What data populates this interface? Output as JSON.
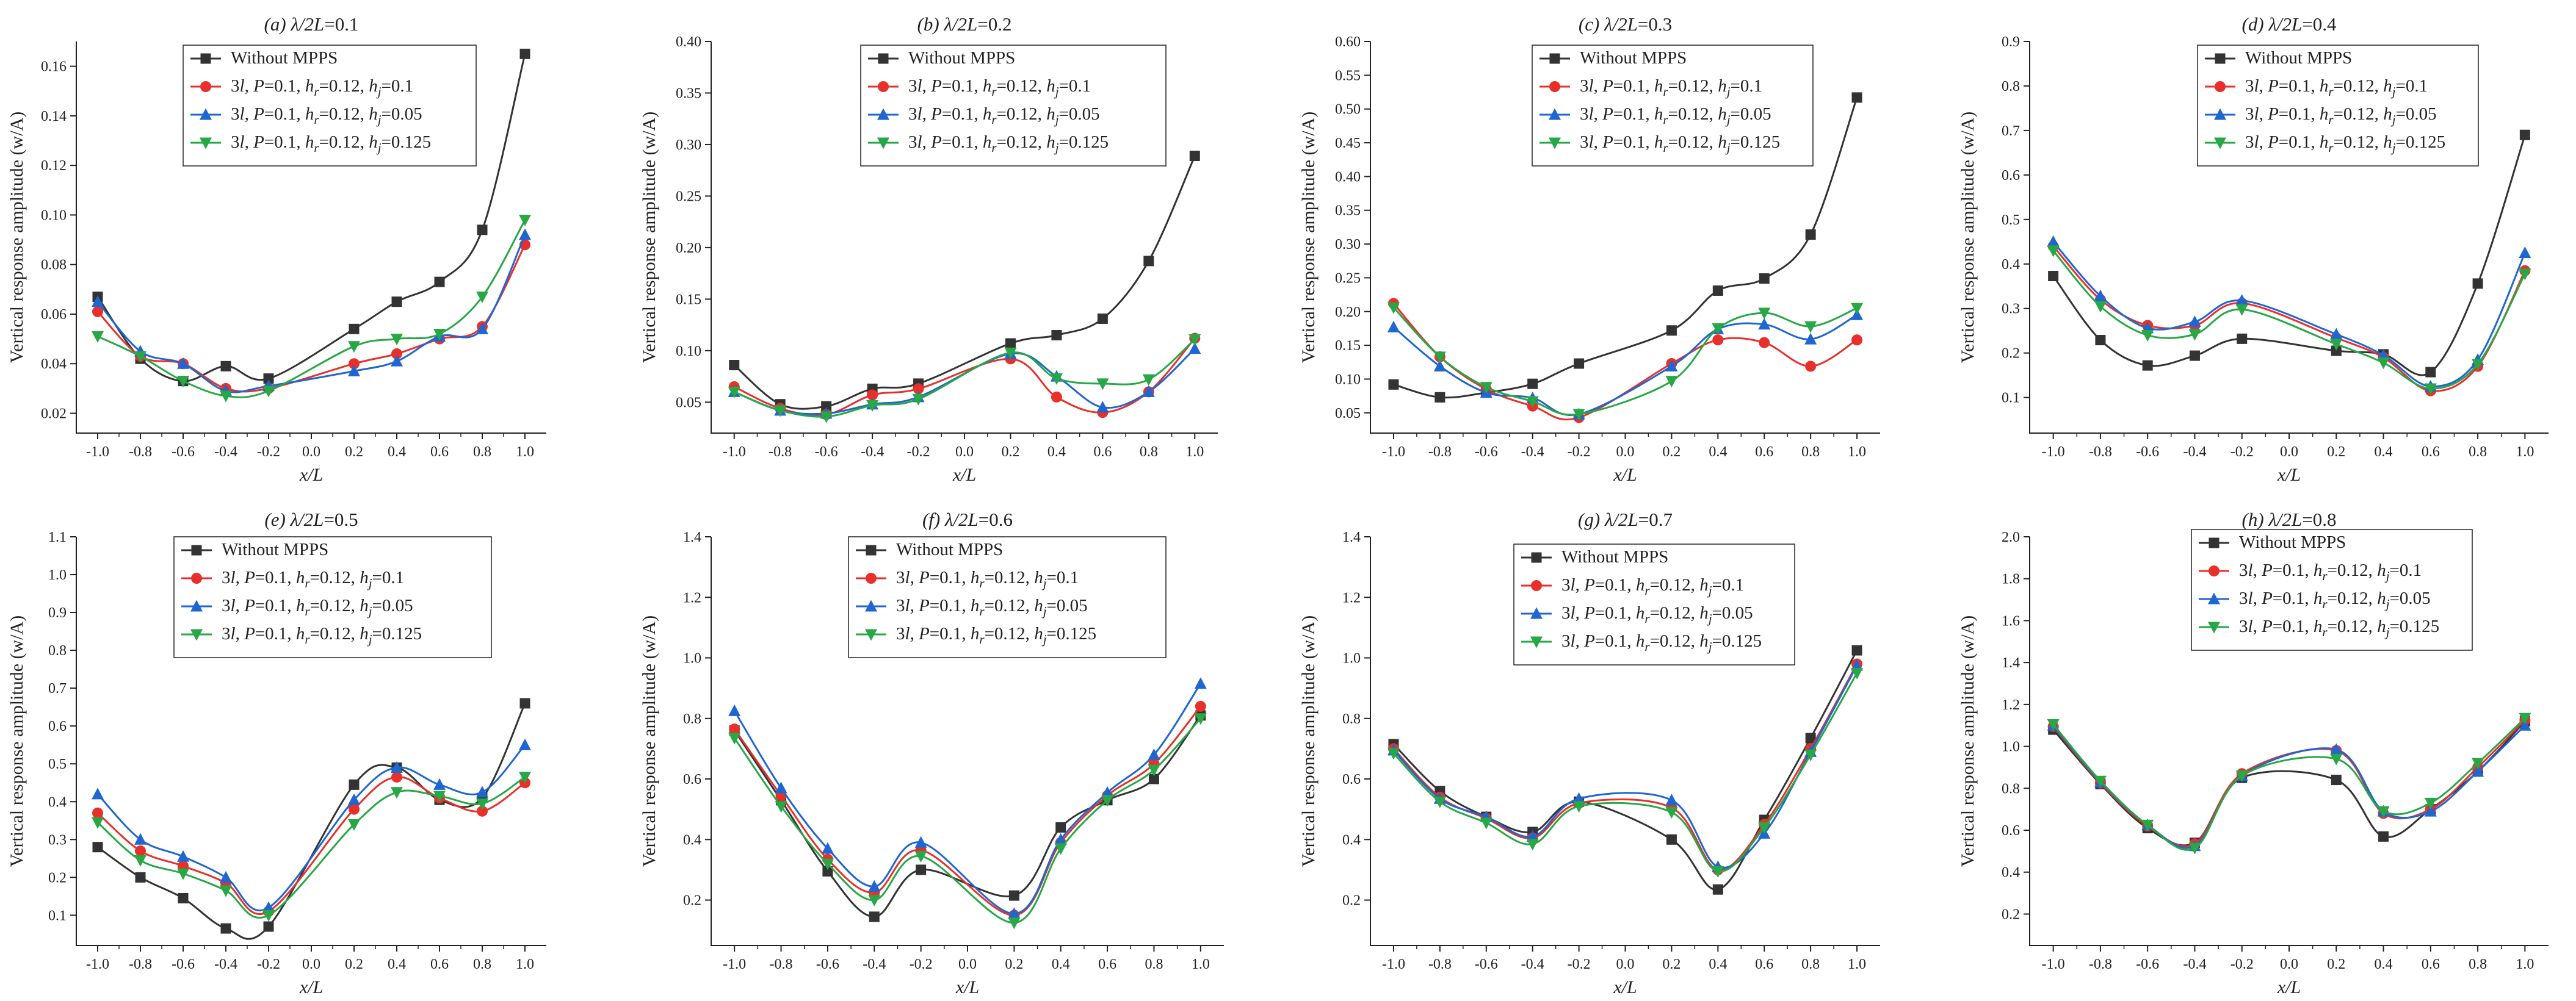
{
  "chart_data": [
    {
      "type": "line",
      "title": "(a) λ/2L=0.1",
      "xlabel": "x/L",
      "ylabel": "Vertical response amplitude (w/A)",
      "x": [
        -1.0,
        -0.8,
        -0.6,
        -0.4,
        -0.2,
        0.2,
        0.4,
        0.6,
        0.8,
        1.0
      ],
      "xticks": [
        "-1.0",
        "-0.8",
        "-0.6",
        "-0.4",
        "-0.2",
        "0.0",
        "0.2",
        "0.4",
        "0.6",
        "0.8",
        "1.0"
      ],
      "ylim": [
        0.012,
        0.17
      ],
      "yticks": [
        "0.02",
        "0.04",
        "0.06",
        "0.08",
        "0.10",
        "0.12",
        "0.14",
        "0.16"
      ],
      "ytick_values": [
        0.02,
        0.04,
        0.06,
        0.08,
        0.1,
        0.12,
        0.14,
        0.16
      ],
      "legend_position": "top-center",
      "series": [
        {
          "name": "Without MPPS",
          "color": "#333333",
          "marker": "square",
          "values": [
            0.067,
            0.042,
            0.033,
            0.039,
            0.034,
            0.054,
            0.065,
            0.073,
            0.094,
            0.165
          ]
        },
        {
          "name": "3l, P=0.1, hr=0.12, hj=0.1",
          "color": "#e8302a",
          "marker": "circle",
          "values": [
            0.061,
            0.043,
            0.04,
            0.03,
            0.03,
            0.04,
            0.044,
            0.05,
            0.055,
            0.088
          ]
        },
        {
          "name": "3l, P=0.1, hr=0.12, hj=0.05",
          "color": "#1f66d1",
          "marker": "triangle-up",
          "values": [
            0.065,
            0.045,
            0.04,
            0.029,
            0.031,
            0.037,
            0.041,
            0.051,
            0.054,
            0.092
          ]
        },
        {
          "name": "3l, P=0.1, hr=0.12, hj=0.125",
          "color": "#27a745",
          "marker": "triangle-down",
          "values": [
            0.051,
            0.043,
            0.033,
            0.027,
            0.029,
            0.047,
            0.05,
            0.052,
            0.067,
            0.098
          ]
        }
      ]
    },
    {
      "type": "line",
      "title": "(b) λ/2L=0.2",
      "xlabel": "x/L",
      "ylabel": "Vertical response amplitude (w/A)",
      "x": [
        -1.0,
        -0.8,
        -0.6,
        -0.4,
        -0.2,
        0.2,
        0.4,
        0.6,
        0.8,
        1.0
      ],
      "xticks": [
        "-1.0",
        "-0.8",
        "-0.6",
        "-0.4",
        "-0.2",
        "0.0",
        "0.2",
        "0.4",
        "0.6",
        "0.8",
        "1.0"
      ],
      "ylim": [
        0.02,
        0.4
      ],
      "yticks": [
        "0.05",
        "0.10",
        "0.15",
        "0.20",
        "0.25",
        "0.30",
        "0.35",
        "0.40"
      ],
      "ytick_values": [
        0.05,
        0.1,
        0.15,
        0.2,
        0.25,
        0.3,
        0.35,
        0.4
      ],
      "legend_position": "top-center",
      "series": [
        {
          "name": "Without MPPS",
          "color": "#333333",
          "marker": "square",
          "values": [
            0.086,
            0.048,
            0.046,
            0.063,
            0.068,
            0.107,
            0.115,
            0.131,
            0.187,
            0.289
          ]
        },
        {
          "name": "3l, P=0.1, hr=0.12, hj=0.1",
          "color": "#e8302a",
          "marker": "circle",
          "values": [
            0.065,
            0.044,
            0.038,
            0.057,
            0.063,
            0.092,
            0.055,
            0.04,
            0.06,
            0.112
          ]
        },
        {
          "name": "3l, P=0.1, hr=0.12, hj=0.05",
          "color": "#1f66d1",
          "marker": "triangle-up",
          "values": [
            0.06,
            0.042,
            0.039,
            0.048,
            0.055,
            0.097,
            0.075,
            0.045,
            0.06,
            0.102
          ]
        },
        {
          "name": "3l, P=0.1, hr=0.12, hj=0.125",
          "color": "#27a745",
          "marker": "triangle-down",
          "values": [
            0.06,
            0.042,
            0.036,
            0.047,
            0.053,
            0.098,
            0.073,
            0.068,
            0.072,
            0.111
          ]
        }
      ]
    },
    {
      "type": "line",
      "title": "(c) λ/2L=0.3",
      "xlabel": "x/L",
      "ylabel": "Vertical response amplitude (w/A)",
      "x": [
        -1.0,
        -0.8,
        -0.6,
        -0.4,
        -0.2,
        0.2,
        0.4,
        0.6,
        0.8,
        1.0
      ],
      "xticks": [
        "-1.0",
        "-0.8",
        "-0.6",
        "-0.4",
        "-0.2",
        "0.0",
        "0.2",
        "0.4",
        "0.6",
        "0.8",
        "1.0"
      ],
      "ylim": [
        0.02,
        0.6
      ],
      "yticks": [
        "0.05",
        "0.10",
        "0.15",
        "0.20",
        "0.25",
        "0.30",
        "0.35",
        "0.40",
        "0.45",
        "0.50",
        "0.55",
        "0.60"
      ],
      "ytick_values": [
        0.05,
        0.1,
        0.15,
        0.2,
        0.25,
        0.3,
        0.35,
        0.4,
        0.45,
        0.5,
        0.55,
        0.6
      ],
      "legend_position": "top-center",
      "series": [
        {
          "name": "Without MPPS",
          "color": "#333333",
          "marker": "square",
          "values": [
            0.092,
            0.073,
            0.08,
            0.093,
            0.123,
            0.172,
            0.231,
            0.249,
            0.314,
            0.517
          ]
        },
        {
          "name": "3l, P=0.1, hr=0.12, hj=0.1",
          "color": "#e8302a",
          "marker": "circle",
          "values": [
            0.212,
            0.133,
            0.085,
            0.06,
            0.043,
            0.123,
            0.158,
            0.154,
            0.119,
            0.158
          ]
        },
        {
          "name": "3l, P=0.1, hr=0.12, hj=0.05",
          "color": "#1f66d1",
          "marker": "triangle-up",
          "values": [
            0.177,
            0.119,
            0.08,
            0.072,
            0.048,
            0.119,
            0.174,
            0.181,
            0.159,
            0.195
          ]
        },
        {
          "name": "3l, P=0.1, hr=0.12, hj=0.125",
          "color": "#27a745",
          "marker": "triangle-down",
          "values": [
            0.206,
            0.133,
            0.088,
            0.067,
            0.048,
            0.097,
            0.175,
            0.198,
            0.178,
            0.205
          ]
        }
      ]
    },
    {
      "type": "line",
      "title": "(d) λ/2L=0.4",
      "xlabel": "x/L",
      "ylabel": "Vertical response amplitude (w/A)",
      "x": [
        -1.0,
        -0.8,
        -0.6,
        -0.4,
        -0.2,
        0.2,
        0.4,
        0.6,
        0.8,
        1.0
      ],
      "xticks": [
        "-1.0",
        "-0.8",
        "-0.6",
        "-0.4",
        "-0.2",
        "0.0",
        "0.2",
        "0.4",
        "0.6",
        "0.8",
        "1.0"
      ],
      "ylim": [
        0.02,
        0.9
      ],
      "yticks": [
        "0.1",
        "0.2",
        "0.3",
        "0.4",
        "0.5",
        "0.6",
        "0.7",
        "0.8",
        "0.9"
      ],
      "ytick_values": [
        0.1,
        0.2,
        0.3,
        0.4,
        0.5,
        0.6,
        0.7,
        0.8,
        0.9
      ],
      "legend_position": "top-center",
      "series": [
        {
          "name": "Without MPPS",
          "color": "#333333",
          "marker": "square",
          "values": [
            0.373,
            0.229,
            0.172,
            0.194,
            0.232,
            0.205,
            0.197,
            0.157,
            0.356,
            0.69
          ]
        },
        {
          "name": "3l, P=0.1, hr=0.12, hj=0.1",
          "color": "#e8302a",
          "marker": "circle",
          "values": [
            0.44,
            0.32,
            0.262,
            0.262,
            0.312,
            0.234,
            0.19,
            0.115,
            0.17,
            0.385
          ]
        },
        {
          "name": "3l, P=0.1, hr=0.12, hj=0.05",
          "color": "#1f66d1",
          "marker": "triangle-up",
          "values": [
            0.45,
            0.328,
            0.256,
            0.27,
            0.318,
            0.242,
            0.195,
            0.125,
            0.185,
            0.425
          ]
        },
        {
          "name": "3l, P=0.1, hr=0.12, hj=0.125",
          "color": "#27a745",
          "marker": "triangle-down",
          "values": [
            0.43,
            0.305,
            0.24,
            0.242,
            0.298,
            0.22,
            0.178,
            0.12,
            0.175,
            0.378
          ]
        }
      ]
    },
    {
      "type": "line",
      "title": "(e) λ/2L=0.5",
      "xlabel": "x/L",
      "ylabel": "Vertical response amplitude (w/A)",
      "x": [
        -1.0,
        -0.8,
        -0.6,
        -0.4,
        -0.2,
        0.2,
        0.4,
        0.6,
        0.8,
        1.0
      ],
      "xticks": [
        "-1.0",
        "-0.8",
        "-0.6",
        "-0.4",
        "-0.2",
        "0.0",
        "0.2",
        "0.4",
        "0.6",
        "0.8",
        "1.0"
      ],
      "ylim": [
        0.02,
        1.1
      ],
      "yticks": [
        "0.1",
        "0.2",
        "0.3",
        "0.4",
        "0.5",
        "0.6",
        "0.7",
        "0.8",
        "0.9",
        "1.0",
        "1.1"
      ],
      "ytick_values": [
        0.1,
        0.2,
        0.3,
        0.4,
        0.5,
        0.6,
        0.7,
        0.8,
        0.9,
        1.0,
        1.1
      ],
      "legend_position": "top-center",
      "series": [
        {
          "name": "Without MPPS",
          "color": "#333333",
          "marker": "square",
          "values": [
            0.28,
            0.2,
            0.145,
            0.065,
            0.07,
            0.445,
            0.49,
            0.405,
            0.41,
            0.66
          ]
        },
        {
          "name": "3l, P=0.1, hr=0.12, hj=0.1",
          "color": "#e8302a",
          "marker": "circle",
          "values": [
            0.37,
            0.27,
            0.23,
            0.185,
            0.11,
            0.38,
            0.465,
            0.41,
            0.375,
            0.45
          ]
        },
        {
          "name": "3l, P=0.1, hr=0.12, hj=0.05",
          "color": "#1f66d1",
          "marker": "triangle-up",
          "values": [
            0.42,
            0.3,
            0.255,
            0.2,
            0.12,
            0.405,
            0.49,
            0.445,
            0.425,
            0.55
          ]
        },
        {
          "name": "3l, P=0.1, hr=0.12, hj=0.125",
          "color": "#27a745",
          "marker": "triangle-down",
          "values": [
            0.345,
            0.245,
            0.21,
            0.165,
            0.1,
            0.34,
            0.425,
            0.415,
            0.395,
            0.465
          ]
        }
      ]
    },
    {
      "type": "line",
      "title": "(f) λ/2L=0.6",
      "xlabel": "x/L",
      "ylabel": "Vertical response amplitude (w/A)",
      "x": [
        -1.0,
        -0.8,
        -0.6,
        -0.4,
        -0.2,
        0.2,
        0.4,
        0.6,
        0.8,
        1.0
      ],
      "xticks": [
        "-1.0",
        "-0.8",
        "-0.6",
        "-0.4",
        "-0.2",
        "0.0",
        "0.2",
        "0.4",
        "0.6",
        "0.8",
        "1.0"
      ],
      "ylim": [
        0.05,
        1.4
      ],
      "yticks": [
        "0.2",
        "0.4",
        "0.6",
        "0.8",
        "1.0",
        "1.2",
        "1.4"
      ],
      "ytick_values": [
        0.2,
        0.4,
        0.6,
        0.8,
        1.0,
        1.2,
        1.4
      ],
      "legend_position": "top-center",
      "series": [
        {
          "name": "Without MPPS",
          "color": "#333333",
          "marker": "square",
          "values": [
            0.76,
            0.53,
            0.295,
            0.145,
            0.3,
            0.215,
            0.44,
            0.53,
            0.6,
            0.81
          ]
        },
        {
          "name": "3l, P=0.1, hr=0.12, hj=0.1",
          "color": "#e8302a",
          "marker": "circle",
          "values": [
            0.765,
            0.545,
            0.335,
            0.225,
            0.365,
            0.15,
            0.39,
            0.545,
            0.65,
            0.84
          ]
        },
        {
          "name": "3l, P=0.1, hr=0.12, hj=0.05",
          "color": "#1f66d1",
          "marker": "triangle-up",
          "values": [
            0.825,
            0.57,
            0.37,
            0.245,
            0.39,
            0.155,
            0.4,
            0.555,
            0.68,
            0.915
          ]
        },
        {
          "name": "3l, P=0.1, hr=0.12, hj=0.125",
          "color": "#27a745",
          "marker": "triangle-down",
          "values": [
            0.735,
            0.51,
            0.32,
            0.2,
            0.345,
            0.125,
            0.37,
            0.53,
            0.63,
            0.8
          ]
        }
      ]
    },
    {
      "type": "line",
      "title": "(g) λ/2L=0.7",
      "xlabel": "x/L",
      "ylabel": "Vertical response amplitude (w/A)",
      "x": [
        -1.0,
        -0.8,
        -0.6,
        -0.4,
        -0.2,
        0.2,
        0.4,
        0.6,
        0.8,
        1.0
      ],
      "xticks": [
        "-1.0",
        "-0.8",
        "-0.6",
        "-0.4",
        "-0.2",
        "0.0",
        "0.2",
        "0.4",
        "0.6",
        "0.8",
        "1.0"
      ],
      "ylim": [
        0.05,
        1.4
      ],
      "yticks": [
        "0.2",
        "0.4",
        "0.6",
        "0.8",
        "1.0",
        "1.2",
        "1.4"
      ],
      "ytick_values": [
        0.2,
        0.4,
        0.6,
        0.8,
        1.0,
        1.2,
        1.4
      ],
      "legend_position": "top-center",
      "series": [
        {
          "name": "Without MPPS",
          "color": "#333333",
          "marker": "square",
          "values": [
            0.715,
            0.56,
            0.475,
            0.425,
            0.525,
            0.4,
            0.235,
            0.465,
            0.735,
            1.025
          ]
        },
        {
          "name": "3l, P=0.1, hr=0.12, hj=0.1",
          "color": "#e8302a",
          "marker": "circle",
          "values": [
            0.7,
            0.54,
            0.47,
            0.405,
            0.52,
            0.505,
            0.3,
            0.45,
            0.7,
            0.98
          ]
        },
        {
          "name": "3l, P=0.1, hr=0.12, hj=0.05",
          "color": "#1f66d1",
          "marker": "triangle-up",
          "values": [
            0.695,
            0.535,
            0.475,
            0.41,
            0.535,
            0.53,
            0.31,
            0.42,
            0.69,
            0.975
          ]
        },
        {
          "name": "3l, P=0.1, hr=0.12, hj=0.125",
          "color": "#27a745",
          "marker": "triangle-down",
          "values": [
            0.685,
            0.525,
            0.455,
            0.385,
            0.51,
            0.49,
            0.295,
            0.44,
            0.68,
            0.95
          ]
        }
      ]
    },
    {
      "type": "line",
      "title": "(h) λ/2L=0.8",
      "xlabel": "x/L",
      "ylabel": "Vertical response amplitude (w/A)",
      "x": [
        -1.0,
        -0.8,
        -0.6,
        -0.4,
        -0.2,
        0.2,
        0.4,
        0.6,
        0.8,
        1.0
      ],
      "xticks": [
        "-1.0",
        "-0.8",
        "-0.6",
        "-0.4",
        "-0.2",
        "0.0",
        "0.2",
        "0.4",
        "0.6",
        "0.8",
        "1.0"
      ],
      "ylim": [
        0.05,
        2.0
      ],
      "yticks": [
        "0.2",
        "0.4",
        "0.6",
        "0.8",
        "1.0",
        "1.2",
        "1.4",
        "1.6",
        "1.8",
        "2.0"
      ],
      "ytick_values": [
        0.2,
        0.4,
        0.6,
        0.8,
        1.0,
        1.2,
        1.4,
        1.6,
        1.8,
        2.0
      ],
      "legend_position": "top-center",
      "series": [
        {
          "name": "Without MPPS",
          "color": "#333333",
          "marker": "square",
          "values": [
            1.08,
            0.82,
            0.61,
            0.54,
            0.85,
            0.84,
            0.57,
            0.7,
            0.88,
            1.12
          ]
        },
        {
          "name": "3l, P=0.1, hr=0.12, hj=0.1",
          "color": "#e8302a",
          "marker": "circle",
          "values": [
            1.095,
            0.825,
            0.62,
            0.535,
            0.87,
            0.98,
            0.68,
            0.7,
            0.9,
            1.125
          ]
        },
        {
          "name": "3l, P=0.1, hr=0.12, hj=0.05",
          "color": "#1f66d1",
          "marker": "triangle-up",
          "values": [
            1.1,
            0.83,
            0.625,
            0.525,
            0.86,
            0.985,
            0.69,
            0.69,
            0.88,
            1.1
          ]
        },
        {
          "name": "3l, P=0.1, hr=0.12, hj=0.125",
          "color": "#27a745",
          "marker": "triangle-down",
          "values": [
            1.105,
            0.835,
            0.625,
            0.515,
            0.86,
            0.94,
            0.69,
            0.73,
            0.92,
            1.135
          ]
        }
      ]
    }
  ]
}
